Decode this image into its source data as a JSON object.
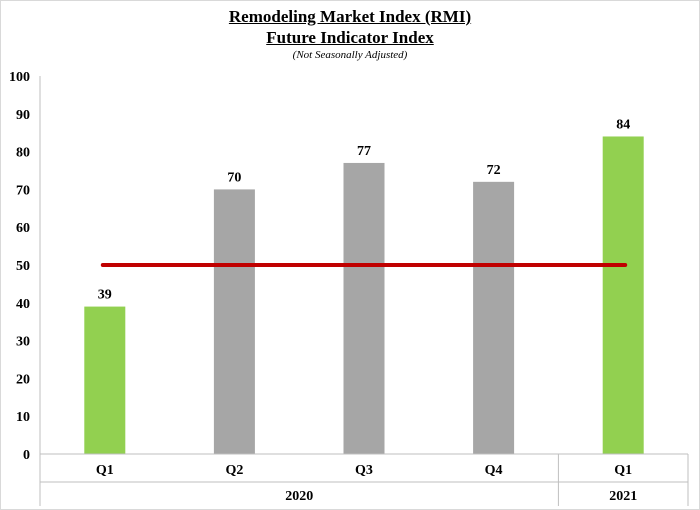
{
  "chart_data": {
    "type": "bar",
    "title": "Remodeling Market Index (RMI)",
    "subtitle": "Future Indicator Index",
    "note": "(Not Seasonally Adjusted)",
    "categories": [
      "Q1",
      "Q2",
      "Q3",
      "Q4",
      "Q1"
    ],
    "groups": [
      {
        "label": "2020",
        "categories": [
          "Q1",
          "Q2",
          "Q3",
          "Q4"
        ]
      },
      {
        "label": "2021",
        "categories": [
          "Q1"
        ]
      }
    ],
    "values": [
      39,
      70,
      77,
      72,
      84
    ],
    "bar_colors": [
      "#92d050",
      "#a6a6a6",
      "#a6a6a6",
      "#a6a6a6",
      "#92d050"
    ],
    "data_labels": [
      "39",
      "70",
      "77",
      "72",
      "84"
    ],
    "yticks": [
      0,
      10,
      20,
      30,
      40,
      50,
      60,
      70,
      80,
      90,
      100
    ],
    "ylim": [
      0,
      100
    ],
    "reference_line": {
      "value": 50,
      "color": "#c00000"
    },
    "grid": false,
    "legend": "none",
    "xlabel": "",
    "ylabel": ""
  }
}
